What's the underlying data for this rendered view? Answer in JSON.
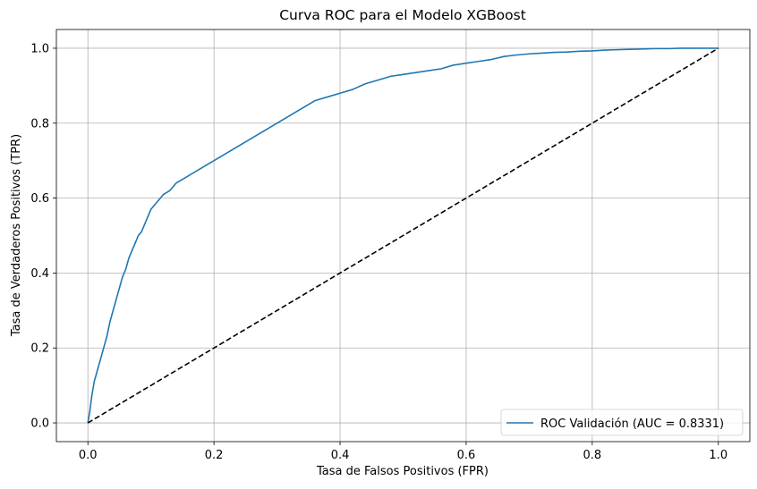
{
  "chart_data": {
    "type": "line",
    "title": "Curva ROC para el Modelo XGBoost",
    "xlabel": "Tasa de Falsos Positivos (FPR)",
    "ylabel": "Tasa de Verdaderos Positivos (TPR)",
    "xlim": [
      -0.05,
      1.05
    ],
    "ylim": [
      -0.05,
      1.05
    ],
    "xticks": [
      "0.0",
      "0.2",
      "0.4",
      "0.6",
      "0.8",
      "1.0"
    ],
    "yticks": [
      "0.0",
      "0.2",
      "0.4",
      "0.6",
      "0.8",
      "1.0"
    ],
    "grid": true,
    "legend_position": "lower-right",
    "series": [
      {
        "name": "ROC Validación (AUC = 0.8331)",
        "color": "#1f77b4",
        "style": "solid",
        "x": [
          0.0,
          0.003,
          0.006,
          0.01,
          0.015,
          0.02,
          0.025,
          0.03,
          0.035,
          0.04,
          0.045,
          0.05,
          0.055,
          0.06,
          0.065,
          0.07,
          0.075,
          0.08,
          0.085,
          0.09,
          0.095,
          0.1,
          0.11,
          0.12,
          0.13,
          0.14,
          0.15,
          0.16,
          0.17,
          0.18,
          0.19,
          0.2,
          0.22,
          0.24,
          0.26,
          0.28,
          0.3,
          0.32,
          0.34,
          0.36,
          0.38,
          0.4,
          0.42,
          0.44,
          0.46,
          0.48,
          0.5,
          0.52,
          0.54,
          0.56,
          0.58,
          0.6,
          0.62,
          0.64,
          0.66,
          0.68,
          0.7,
          0.72,
          0.74,
          0.76,
          0.78,
          0.8,
          0.82,
          0.84,
          0.86,
          0.88,
          0.9,
          0.92,
          0.94,
          0.96,
          0.98,
          1.0
        ],
        "y": [
          0.0,
          0.03,
          0.07,
          0.11,
          0.14,
          0.17,
          0.2,
          0.23,
          0.27,
          0.3,
          0.33,
          0.36,
          0.39,
          0.41,
          0.44,
          0.46,
          0.48,
          0.5,
          0.51,
          0.53,
          0.55,
          0.57,
          0.59,
          0.61,
          0.62,
          0.64,
          0.65,
          0.66,
          0.67,
          0.68,
          0.69,
          0.7,
          0.72,
          0.74,
          0.76,
          0.78,
          0.8,
          0.82,
          0.84,
          0.86,
          0.87,
          0.88,
          0.89,
          0.905,
          0.915,
          0.925,
          0.93,
          0.935,
          0.94,
          0.945,
          0.955,
          0.96,
          0.965,
          0.97,
          0.978,
          0.982,
          0.985,
          0.987,
          0.989,
          0.99,
          0.992,
          0.993,
          0.995,
          0.996,
          0.997,
          0.998,
          0.999,
          0.999,
          1.0,
          1.0,
          1.0,
          1.0
        ]
      },
      {
        "name": "",
        "color": "#000000",
        "style": "dashed",
        "x": [
          0.0,
          1.0
        ],
        "y": [
          0.0,
          1.0
        ]
      }
    ]
  }
}
